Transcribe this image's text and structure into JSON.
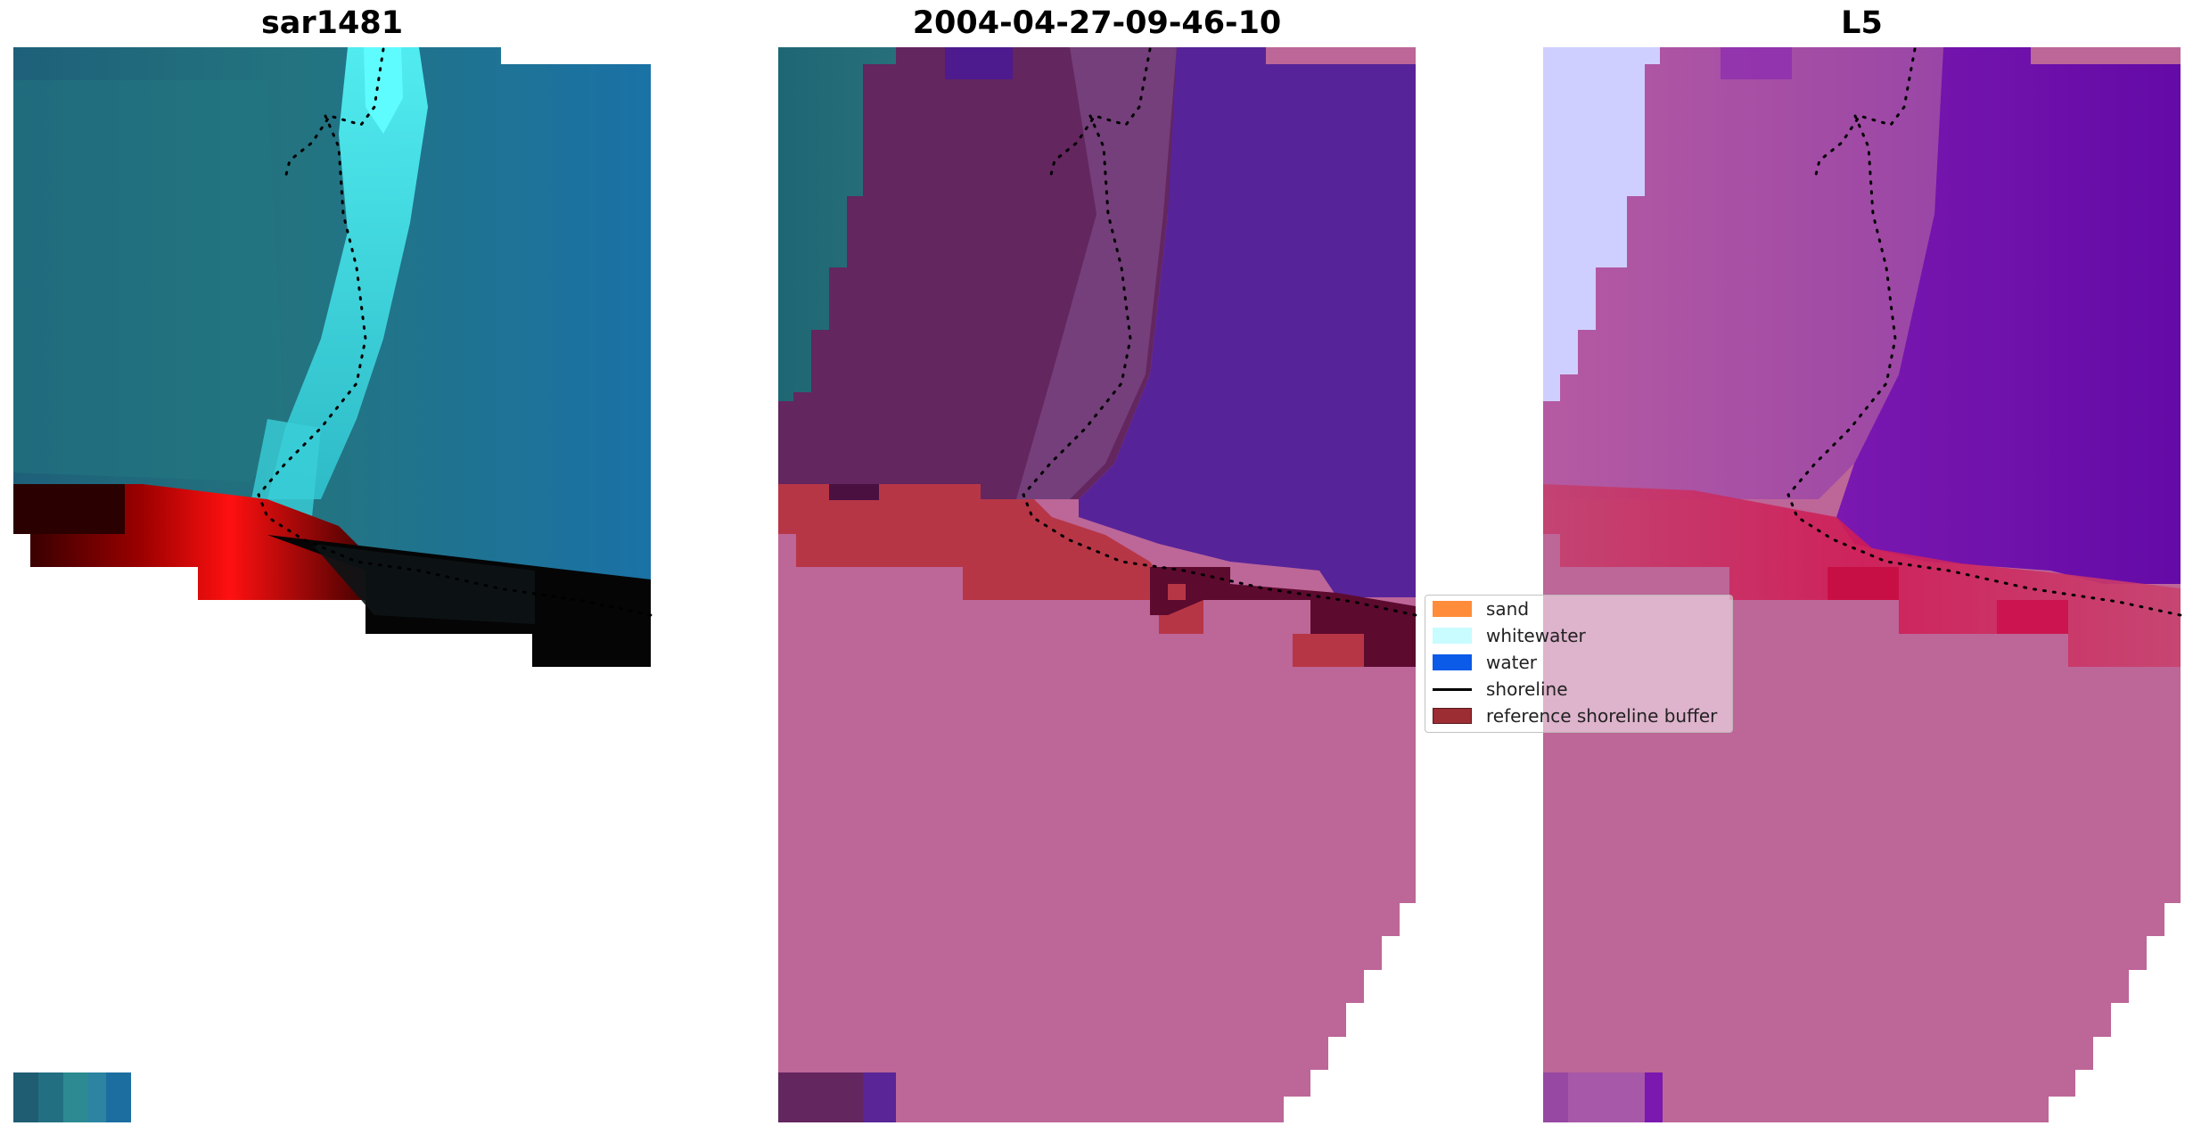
{
  "panels": [
    {
      "title": "sar1481",
      "content": "rgb-composite"
    },
    {
      "title": "2004-04-27-09-46-10",
      "content": "classified-overlay"
    },
    {
      "title": "L5",
      "content": "index-map"
    }
  ],
  "legend": {
    "items": [
      {
        "label": "sand",
        "color": "#ff8c3a",
        "kind": "patch"
      },
      {
        "label": "whitewater",
        "color": "#c8fcff",
        "kind": "patch"
      },
      {
        "label": "water",
        "color": "#0b5ae8",
        "kind": "patch"
      },
      {
        "label": "shoreline",
        "color": "#000000",
        "kind": "line"
      },
      {
        "label": "reference shoreline buffer",
        "color": "#9b2d33",
        "kind": "patch"
      }
    ]
  },
  "colors": {
    "rgb_base": "#1f6e8e",
    "rgb_whitewater": "#4ef6f8",
    "rgb_sand": "#ff0000",
    "rgb_shadow": "#000000",
    "class_land": "#bd6698",
    "class_water": "#572398",
    "class_mixed": "#64265f",
    "class_buffer": "#b73646",
    "class_teal": "#22686f",
    "index_low": "#cfcfff",
    "index_high": "#6a0ca8",
    "index_mid": "#a957a8"
  }
}
